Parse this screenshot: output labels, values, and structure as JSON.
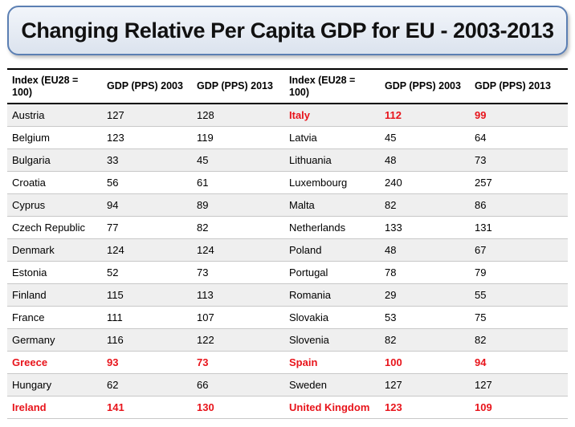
{
  "title": "Changing Relative Per Capita GDP for EU - 2003-2013",
  "colors": {
    "highlight": "#e8141b",
    "title_border": "#5b7fb3"
  },
  "table": {
    "headers": [
      "Index (EU28 = 100)",
      "GDP (PPS) 2003",
      "GDP (PPS) 2013",
      "Index (EU28 = 100)",
      "GDP (PPS) 2003",
      "GDP (PPS) 2013"
    ],
    "rows": [
      {
        "left": {
          "country": "Austria",
          "gdp2003": "127",
          "gdp2013": "128",
          "highlight": false
        },
        "right": {
          "country": "Italy",
          "gdp2003": "112",
          "gdp2013": "99",
          "highlight": true
        }
      },
      {
        "left": {
          "country": "Belgium",
          "gdp2003": "123",
          "gdp2013": "119",
          "highlight": false
        },
        "right": {
          "country": "Latvia",
          "gdp2003": "45",
          "gdp2013": "64",
          "highlight": false
        }
      },
      {
        "left": {
          "country": "Bulgaria",
          "gdp2003": "33",
          "gdp2013": "45",
          "highlight": false
        },
        "right": {
          "country": "Lithuania",
          "gdp2003": "48",
          "gdp2013": "73",
          "highlight": false
        }
      },
      {
        "left": {
          "country": "Croatia",
          "gdp2003": "56",
          "gdp2013": "61",
          "highlight": false
        },
        "right": {
          "country": "Luxembourg",
          "gdp2003": "240",
          "gdp2013": "257",
          "highlight": false
        }
      },
      {
        "left": {
          "country": "Cyprus",
          "gdp2003": "94",
          "gdp2013": "89",
          "highlight": false
        },
        "right": {
          "country": "Malta",
          "gdp2003": "82",
          "gdp2013": "86",
          "highlight": false
        }
      },
      {
        "left": {
          "country": "Czech Republic",
          "gdp2003": "77",
          "gdp2013": "82",
          "highlight": false
        },
        "right": {
          "country": "Netherlands",
          "gdp2003": "133",
          "gdp2013": "131",
          "highlight": false
        }
      },
      {
        "left": {
          "country": "Denmark",
          "gdp2003": "124",
          "gdp2013": "124",
          "highlight": false
        },
        "right": {
          "country": "Poland",
          "gdp2003": "48",
          "gdp2013": "67",
          "highlight": false
        }
      },
      {
        "left": {
          "country": "Estonia",
          "gdp2003": "52",
          "gdp2013": "73",
          "highlight": false
        },
        "right": {
          "country": "Portugal",
          "gdp2003": "78",
          "gdp2013": "79",
          "highlight": false
        }
      },
      {
        "left": {
          "country": "Finland",
          "gdp2003": "115",
          "gdp2013": "113",
          "highlight": false
        },
        "right": {
          "country": "Romania",
          "gdp2003": "29",
          "gdp2013": "55",
          "highlight": false
        }
      },
      {
        "left": {
          "country": "France",
          "gdp2003": "111",
          "gdp2013": "107",
          "highlight": false
        },
        "right": {
          "country": "Slovakia",
          "gdp2003": "53",
          "gdp2013": "75",
          "highlight": false
        }
      },
      {
        "left": {
          "country": "Germany",
          "gdp2003": "116",
          "gdp2013": "122",
          "highlight": false
        },
        "right": {
          "country": "Slovenia",
          "gdp2003": "82",
          "gdp2013": "82",
          "highlight": false
        }
      },
      {
        "left": {
          "country": "Greece",
          "gdp2003": "93",
          "gdp2013": "73",
          "highlight": true
        },
        "right": {
          "country": "Spain",
          "gdp2003": "100",
          "gdp2013": "94",
          "highlight": true
        }
      },
      {
        "left": {
          "country": "Hungary",
          "gdp2003": "62",
          "gdp2013": "66",
          "highlight": false
        },
        "right": {
          "country": "Sweden",
          "gdp2003": "127",
          "gdp2013": "127",
          "highlight": false
        }
      },
      {
        "left": {
          "country": "Ireland",
          "gdp2003": "141",
          "gdp2013": "130",
          "highlight": true
        },
        "right": {
          "country": "United Kingdom",
          "gdp2003": "123",
          "gdp2013": "109",
          "highlight": true
        }
      }
    ]
  }
}
